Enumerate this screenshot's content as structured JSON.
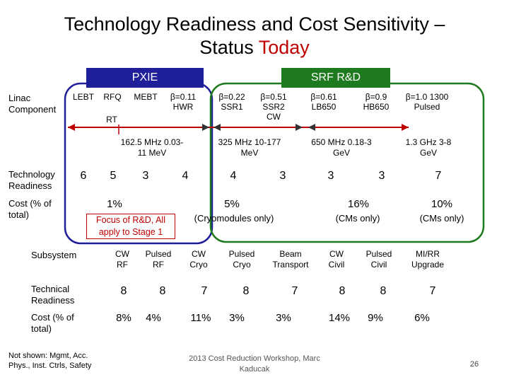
{
  "title": {
    "line1": "Technology Readiness and Cost Sensitivity –",
    "line2_plain": "Status ",
    "line2_accent": "Today"
  },
  "headers": {
    "pxie": "PXIE",
    "srf": "SRF R&D"
  },
  "row_labels": {
    "linac": "Linac Component",
    "tech": "Technology Readiness",
    "cost": "Cost (% of total)"
  },
  "components": {
    "lebt": "LEBT",
    "rfq": "RFQ",
    "mebt": "MEBT",
    "rt": "RT",
    "b011": "β=0.11 HWR",
    "b022": "β=0.22 SSR1",
    "b051": "β=0.51 SSR2 CW",
    "b061": "β=0.61 LB650",
    "b09": "β=0.9 HB650",
    "b10": "β=1.0 1300 Pulsed"
  },
  "frequencies": {
    "f1": "162.5 MHz 0.03-11 MeV",
    "f2": "325 MHz 10-177 MeV",
    "f3": "650 MHz 0.18-3 GeV",
    "f4": "1.3 GHz 3-8 GeV"
  },
  "readiness": [
    "6",
    "5",
    "3",
    "4",
    "4",
    "3",
    "3",
    "3",
    "7"
  ],
  "costs": {
    "c1": "1%",
    "c2": "5%",
    "c2_note": "(Cryomodules only)",
    "c3": "16%",
    "c3_note": "(CMs only)",
    "c4": "10%",
    "c4_note": "(CMs only)"
  },
  "focus_note": "Focus of R&D, All apply to Stage 1",
  "subsystem_table": {
    "labels": {
      "subsystem": "Subsystem",
      "tech": "Technical Readiness",
      "cost": "Cost (% of total)"
    },
    "columns": [
      "CW RF",
      "Pulsed RF",
      "CW Cryo",
      "Pulsed Cryo",
      "Beam Transport",
      "CW Civil",
      "Pulsed Civil",
      "MI/RR Upgrade"
    ],
    "readiness": [
      "8",
      "8",
      "7",
      "8",
      "7",
      "8",
      "8",
      "7"
    ],
    "cost": [
      "8%",
      "4%",
      "11%",
      "3%",
      "3%",
      "14%",
      "9%",
      "6%"
    ]
  },
  "not_shown": "Not shown: Mgmt, Acc. Phys., Inst. Ctrls, Safety",
  "footer": "2013 Cost Reduction Workshop, Marc Kaducak",
  "page_number": "26",
  "colors": {
    "pxie": "#1f1f9a",
    "srf": "#1e7a1e",
    "arrow": "#c00000",
    "accent": "#c00000"
  }
}
